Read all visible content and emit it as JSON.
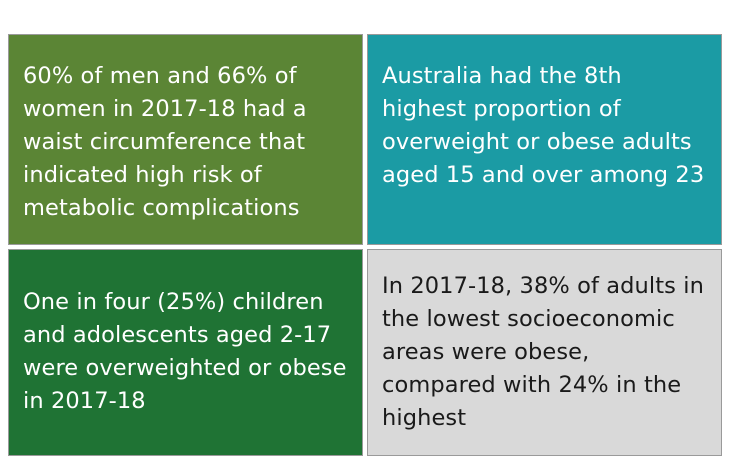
{
  "cells": [
    {
      "text": "60% of men and 66% of women in 2017-18 had a waist circumference that indicated high risk of metabolic complications",
      "background": "#5b8535",
      "text_color": "#ffffff"
    },
    {
      "text": "Australia had the 8th highest proportion of overweight or obese adults aged 15 and over among 23",
      "background": "#1b9ba4",
      "text_color": "#ffffff"
    },
    {
      "text": "One in four (25%) children and adolescents aged 2-17 were overweighted or obese in 2017-18",
      "background": "#1f7334",
      "text_color": "#ffffff"
    },
    {
      "text": "In 2017-18, 38% of adults in the lowest socioeconomic areas were obese, compared with 24% in the highest",
      "background": "#d9d9d9",
      "text_color": "#1a1a1a"
    }
  ]
}
